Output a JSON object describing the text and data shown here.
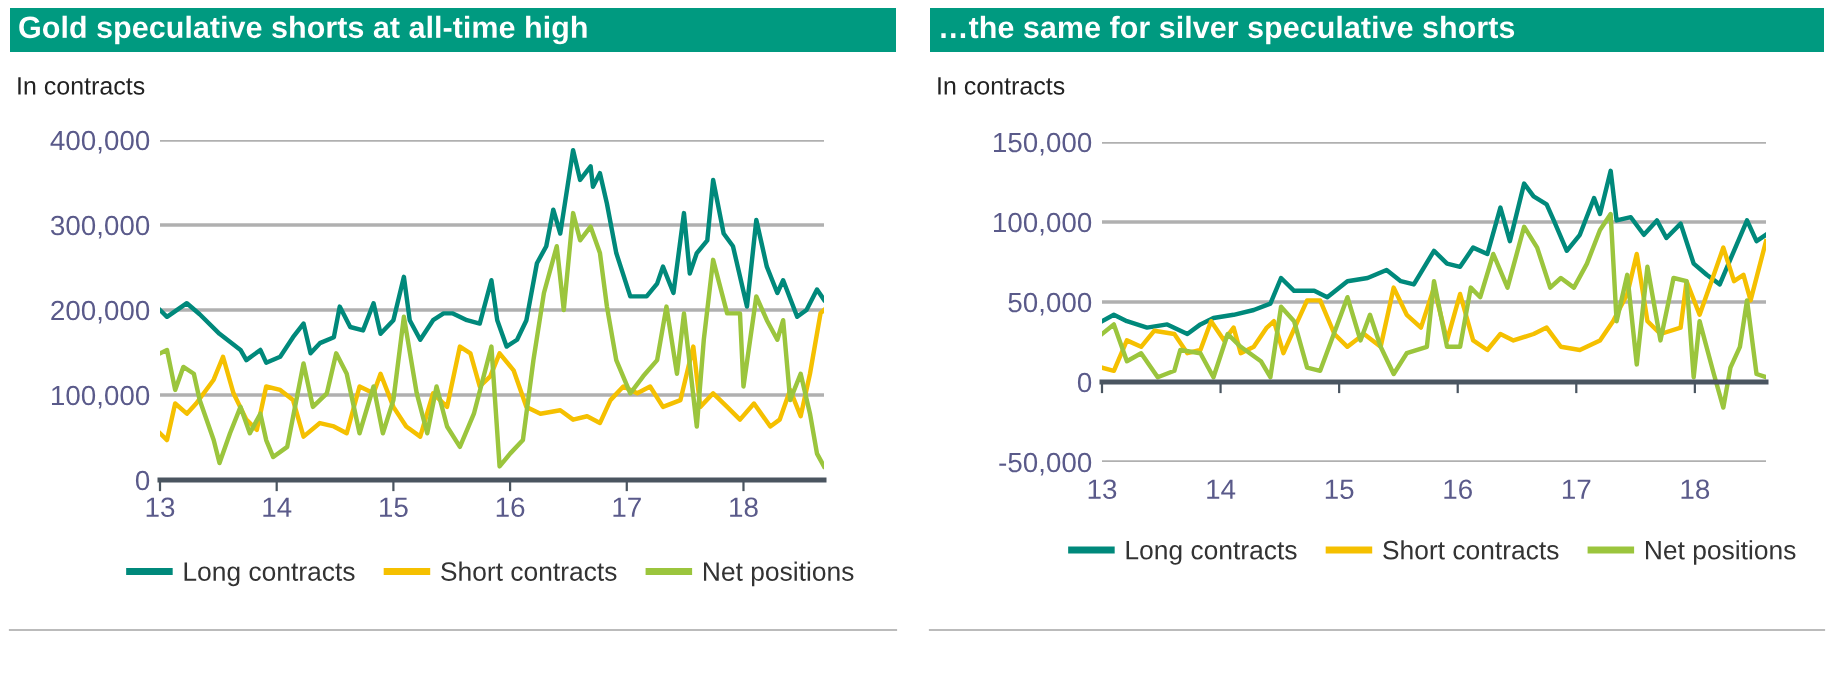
{
  "chart_data": [
    {
      "type": "line",
      "title": "Gold speculative shorts at all-time high",
      "ylabel": "In contracts",
      "xlim": [
        13,
        18.69
      ],
      "xticks": [
        13,
        14,
        15,
        16,
        17,
        18
      ],
      "ylim": [
        0,
        400000
      ],
      "yticks": [
        {
          "value": 0,
          "label": "0"
        },
        {
          "value": 100000,
          "label": "100,000"
        },
        {
          "value": 200000,
          "label": "200,000"
        },
        {
          "value": 300000,
          "label": "300,000"
        },
        {
          "value": 400000,
          "label": "400,000"
        }
      ],
      "grid": "y",
      "legend": "bottom",
      "marker": "none",
      "line_style": "solid",
      "series": [
        {
          "name": "Long contracts",
          "color": "#00897b",
          "x": [
            13.0,
            13.06,
            13.23,
            13.34,
            13.51,
            13.69,
            13.74,
            13.86,
            13.91,
            14.03,
            14.14,
            14.23,
            14.29,
            14.37,
            14.49,
            14.54,
            14.63,
            14.74,
            14.83,
            14.89,
            15.0,
            15.09,
            15.14,
            15.23,
            15.34,
            15.43,
            15.51,
            15.63,
            15.74,
            15.84,
            15.89,
            15.97,
            16.06,
            16.14,
            16.23,
            16.31,
            16.37,
            16.43,
            16.54,
            16.6,
            16.69,
            16.71,
            16.77,
            16.83,
            16.91,
            17.03,
            17.17,
            17.26,
            17.31,
            17.4,
            17.49,
            17.54,
            17.6,
            17.69,
            17.74,
            17.83,
            17.91,
            18.03,
            18.11,
            18.2,
            18.29,
            18.34,
            18.46,
            18.54,
            18.63,
            18.69
          ],
          "values": [
            200000,
            192000,
            208000,
            195000,
            172000,
            153000,
            141000,
            153000,
            138000,
            145000,
            168000,
            184000,
            149000,
            161000,
            168000,
            204000,
            180000,
            176000,
            208000,
            172000,
            188000,
            239000,
            188000,
            165000,
            188000,
            196000,
            196000,
            188000,
            184000,
            235000,
            188000,
            157000,
            165000,
            188000,
            255000,
            275000,
            318000,
            290000,
            388000,
            353000,
            369000,
            345000,
            361000,
            325000,
            267000,
            216000,
            216000,
            231000,
            251000,
            220000,
            314000,
            243000,
            267000,
            282000,
            353000,
            290000,
            275000,
            204000,
            306000,
            251000,
            220000,
            235000,
            192000,
            200000,
            224000,
            212000
          ]
        },
        {
          "name": "Short contracts",
          "color": "#f5c000",
          "x": [
            13.0,
            13.06,
            13.13,
            13.23,
            13.31,
            13.46,
            13.54,
            13.63,
            13.74,
            13.83,
            13.91,
            14.03,
            14.14,
            14.23,
            14.37,
            14.49,
            14.6,
            14.71,
            14.83,
            14.89,
            15.0,
            15.11,
            15.23,
            15.34,
            15.46,
            15.57,
            15.66,
            15.74,
            15.83,
            15.91,
            16.03,
            16.14,
            16.26,
            16.43,
            16.54,
            16.66,
            16.77,
            16.86,
            16.97,
            17.09,
            17.2,
            17.31,
            17.46,
            17.57,
            17.63,
            17.74,
            17.86,
            17.97,
            18.09,
            18.23,
            18.31,
            18.4,
            18.49,
            18.57,
            18.66,
            18.69
          ],
          "values": [
            55000,
            47000,
            90000,
            78000,
            90000,
            118000,
            145000,
            102000,
            71000,
            59000,
            110000,
            106000,
            94000,
            51000,
            67000,
            63000,
            55000,
            110000,
            102000,
            125000,
            86000,
            63000,
            51000,
            102000,
            86000,
            157000,
            149000,
            110000,
            122000,
            149000,
            129000,
            86000,
            78000,
            82000,
            71000,
            75000,
            67000,
            94000,
            110000,
            102000,
            110000,
            86000,
            94000,
            157000,
            86000,
            102000,
            86000,
            71000,
            90000,
            63000,
            71000,
            106000,
            75000,
            125000,
            196000,
            200000
          ]
        },
        {
          "name": "Net positions",
          "color": "#9bc53d",
          "x": [
            13.0,
            13.06,
            13.13,
            13.2,
            13.29,
            13.34,
            13.46,
            13.51,
            13.6,
            13.69,
            13.77,
            13.86,
            13.91,
            13.97,
            14.09,
            14.23,
            14.31,
            14.43,
            14.51,
            14.6,
            14.71,
            14.83,
            14.91,
            15.0,
            15.09,
            15.2,
            15.29,
            15.37,
            15.46,
            15.57,
            15.69,
            15.84,
            15.91,
            16.0,
            16.11,
            16.2,
            16.29,
            16.4,
            16.46,
            16.54,
            16.6,
            16.69,
            16.77,
            16.83,
            16.91,
            17.03,
            17.14,
            17.26,
            17.34,
            17.43,
            17.49,
            17.6,
            17.66,
            17.74,
            17.86,
            17.97,
            18.0,
            18.11,
            18.2,
            18.29,
            18.34,
            18.4,
            18.49,
            18.57,
            18.63,
            18.69
          ],
          "values": [
            149000,
            153000,
            106000,
            133000,
            125000,
            94000,
            47000,
            20000,
            55000,
            86000,
            55000,
            78000,
            47000,
            27000,
            39000,
            137000,
            86000,
            102000,
            149000,
            125000,
            55000,
            110000,
            55000,
            94000,
            192000,
            102000,
            55000,
            110000,
            63000,
            39000,
            78000,
            157000,
            16000,
            31000,
            47000,
            141000,
            220000,
            275000,
            200000,
            314000,
            282000,
            298000,
            267000,
            204000,
            141000,
            102000,
            122000,
            141000,
            204000,
            125000,
            196000,
            63000,
            165000,
            259000,
            196000,
            196000,
            110000,
            216000,
            188000,
            165000,
            188000,
            94000,
            125000,
            78000,
            31000,
            16000
          ]
        }
      ]
    },
    {
      "type": "line",
      "title": "…the same for silver speculative shorts",
      "ylabel": "In contracts",
      "xlim": [
        13,
        18.6
      ],
      "xticks": [
        13,
        14,
        15,
        16,
        17,
        18
      ],
      "ylim": [
        -50000,
        150000
      ],
      "yticks": [
        {
          "value": -50000,
          "label": "-50,000"
        },
        {
          "value": 0,
          "label": "0"
        },
        {
          "value": 50000,
          "label": "50,000"
        },
        {
          "value": 100000,
          "label": "100,000"
        },
        {
          "value": 150000,
          "label": "150,000"
        }
      ],
      "grid": "y",
      "legend": "bottom",
      "marker": "none",
      "line_style": "solid",
      "series": [
        {
          "name": "Long contracts",
          "color": "#00897b",
          "x": [
            13.0,
            13.1,
            13.21,
            13.38,
            13.55,
            13.72,
            13.83,
            13.94,
            14.11,
            14.28,
            14.42,
            14.51,
            14.62,
            14.79,
            14.9,
            15.07,
            15.24,
            15.4,
            15.52,
            15.63,
            15.8,
            15.91,
            16.02,
            16.13,
            16.25,
            16.36,
            16.44,
            16.56,
            16.64,
            16.75,
            16.81,
            16.92,
            17.03,
            17.15,
            17.2,
            17.29,
            17.34,
            17.46,
            17.57,
            17.68,
            17.76,
            17.88,
            17.99,
            18.1,
            18.21,
            18.33,
            18.44,
            18.52,
            18.6
          ],
          "values": [
            38000,
            42000,
            38000,
            34000,
            36000,
            30000,
            36000,
            40000,
            42000,
            45000,
            49000,
            65000,
            57000,
            57000,
            53000,
            63000,
            65000,
            70000,
            63000,
            61000,
            82000,
            74000,
            72000,
            84000,
            80000,
            109000,
            88000,
            124000,
            116000,
            111000,
            101000,
            82000,
            92000,
            115000,
            105000,
            132000,
            101000,
            103000,
            92000,
            101000,
            90000,
            99000,
            74000,
            67000,
            61000,
            82000,
            101000,
            88000,
            92000
          ]
        },
        {
          "name": "Short contracts",
          "color": "#f5c000",
          "x": [
            13.0,
            13.1,
            13.21,
            13.33,
            13.44,
            13.61,
            13.72,
            13.83,
            13.92,
            14.03,
            14.11,
            14.17,
            14.28,
            14.39,
            14.45,
            14.53,
            14.65,
            14.73,
            14.84,
            14.96,
            15.07,
            15.21,
            15.35,
            15.46,
            15.57,
            15.69,
            15.8,
            15.91,
            16.02,
            16.13,
            16.25,
            16.36,
            16.47,
            16.64,
            16.75,
            16.87,
            17.03,
            17.2,
            17.31,
            17.43,
            17.51,
            17.6,
            17.71,
            17.88,
            17.93,
            18.04,
            18.16,
            18.24,
            18.33,
            18.41,
            18.47,
            18.6
          ],
          "values": [
            9000,
            7000,
            26000,
            22000,
            32000,
            30000,
            18000,
            20000,
            38000,
            26000,
            34000,
            18000,
            22000,
            34000,
            38000,
            18000,
            38000,
            51000,
            51000,
            30000,
            22000,
            30000,
            22000,
            59000,
            42000,
            34000,
            59000,
            26000,
            55000,
            26000,
            20000,
            30000,
            26000,
            30000,
            34000,
            22000,
            20000,
            26000,
            38000,
            55000,
            80000,
            38000,
            30000,
            34000,
            63000,
            42000,
            67000,
            84000,
            63000,
            67000,
            51000,
            88000
          ]
        },
        {
          "name": "Net positions",
          "color": "#9bc53d",
          "x": [
            13.0,
            13.1,
            13.21,
            13.33,
            13.47,
            13.61,
            13.66,
            13.83,
            13.94,
            14.06,
            14.17,
            14.34,
            14.42,
            14.51,
            14.62,
            14.73,
            14.84,
            15.07,
            15.18,
            15.26,
            15.35,
            15.46,
            15.57,
            15.74,
            15.8,
            15.91,
            16.02,
            16.11,
            16.19,
            16.3,
            16.42,
            16.56,
            16.67,
            16.78,
            16.87,
            16.98,
            17.09,
            17.2,
            17.29,
            17.34,
            17.43,
            17.51,
            17.6,
            17.71,
            17.82,
            17.93,
            17.99,
            18.04,
            18.16,
            18.24,
            18.3,
            18.38,
            18.44,
            18.52,
            18.6
          ],
          "values": [
            30000,
            36000,
            13000,
            18000,
            3000,
            7000,
            20000,
            18000,
            3000,
            30000,
            22000,
            13000,
            3000,
            47000,
            38000,
            9000,
            7000,
            53000,
            26000,
            42000,
            22000,
            5000,
            18000,
            22000,
            63000,
            22000,
            22000,
            59000,
            53000,
            80000,
            59000,
            97000,
            84000,
            59000,
            65000,
            59000,
            74000,
            95000,
            105000,
            38000,
            67000,
            11000,
            72000,
            26000,
            65000,
            63000,
            3000,
            38000,
            5000,
            -16000,
            9000,
            22000,
            51000,
            5000,
            3000
          ]
        }
      ]
    }
  ]
}
